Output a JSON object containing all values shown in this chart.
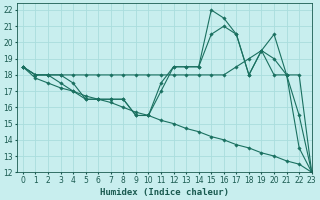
{
  "xlabel": "Humidex (Indice chaleur)",
  "bg_color": "#c8eeee",
  "grid_color": "#aadddd",
  "line_color": "#1a7060",
  "xlim": [
    -0.5,
    23
  ],
  "ylim": [
    12,
    22.4
  ],
  "xticks": [
    0,
    1,
    2,
    3,
    4,
    5,
    6,
    7,
    8,
    9,
    10,
    11,
    12,
    13,
    14,
    15,
    16,
    17,
    18,
    19,
    20,
    21,
    22,
    23
  ],
  "yticks": [
    12,
    13,
    14,
    15,
    16,
    17,
    18,
    19,
    20,
    21,
    22
  ],
  "series": [
    [
      18.5,
      18.0,
      18.0,
      17.5,
      17.0,
      16.5,
      16.5,
      16.5,
      16.5,
      15.5,
      15.5,
      17.5,
      18.5,
      18.5,
      18.5,
      22.0,
      21.5,
      20.5,
      18.0,
      19.5,
      20.5,
      18.0,
      15.5,
      12.0
    ],
    [
      18.5,
      18.0,
      18.0,
      18.0,
      17.5,
      16.5,
      16.5,
      16.5,
      16.5,
      15.5,
      15.5,
      17.0,
      18.5,
      18.5,
      18.5,
      20.5,
      21.0,
      20.5,
      18.0,
      19.5,
      19.0,
      18.0,
      13.5,
      12.0
    ],
    [
      18.5,
      18.0,
      18.0,
      18.0,
      18.0,
      18.0,
      18.0,
      18.0,
      18.0,
      18.0,
      18.0,
      18.0,
      18.0,
      18.0,
      18.0,
      18.0,
      18.0,
      18.5,
      19.0,
      19.5,
      18.0,
      18.0,
      18.0,
      12.0
    ],
    [
      18.5,
      17.8,
      17.5,
      17.2,
      17.0,
      16.7,
      16.5,
      16.3,
      16.0,
      15.7,
      15.5,
      15.2,
      15.0,
      14.7,
      14.5,
      14.2,
      14.0,
      13.7,
      13.5,
      13.2,
      13.0,
      12.7,
      12.5,
      12.0
    ]
  ]
}
